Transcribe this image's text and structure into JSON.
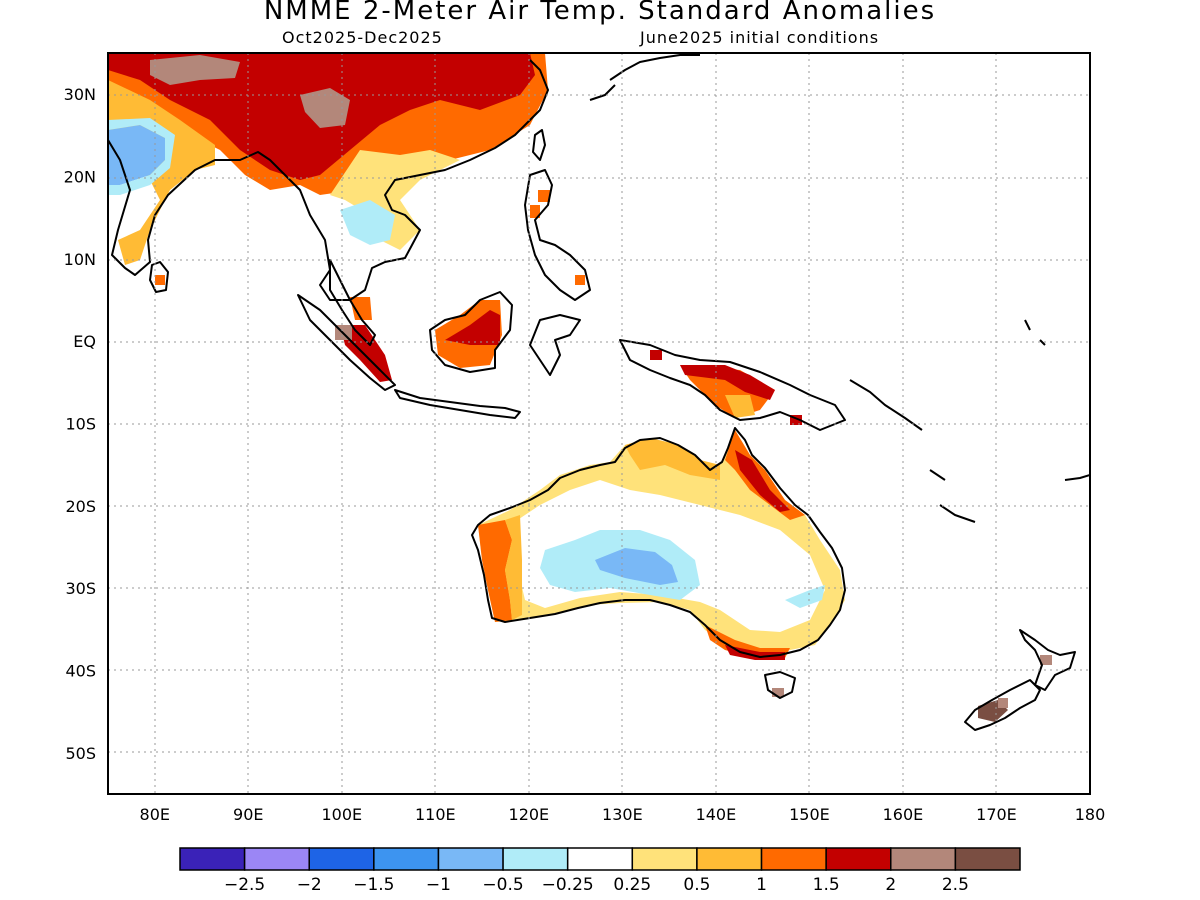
{
  "header": {
    "title": "NMME 2-Meter Air Temp. Standard Anomalies",
    "period": "Oct2025-Dec2025",
    "initial_conditions": "June2025 initial conditions"
  },
  "map": {
    "lon_range": [
      75,
      180
    ],
    "lat_range": [
      -55,
      35
    ],
    "lon_ticks": [
      {
        "lon": 80,
        "label": "80E"
      },
      {
        "lon": 90,
        "label": "90E"
      },
      {
        "lon": 100,
        "label": "100E"
      },
      {
        "lon": 110,
        "label": "110E"
      },
      {
        "lon": 120,
        "label": "120E"
      },
      {
        "lon": 130,
        "label": "130E"
      },
      {
        "lon": 140,
        "label": "140E"
      },
      {
        "lon": 150,
        "label": "150E"
      },
      {
        "lon": 160,
        "label": "160E"
      },
      {
        "lon": 170,
        "label": "170E"
      },
      {
        "lon": 180,
        "label": "180"
      }
    ],
    "lat_ticks": [
      {
        "lat": 30,
        "label": "30N"
      },
      {
        "lat": 20,
        "label": "20N"
      },
      {
        "lat": 10,
        "label": "10N"
      },
      {
        "lat": 0,
        "label": "EQ"
      },
      {
        "lat": -10,
        "label": "10S"
      },
      {
        "lat": -20,
        "label": "20S"
      },
      {
        "lat": -30,
        "label": "30S"
      },
      {
        "lat": -40,
        "label": "40S"
      },
      {
        "lat": -50,
        "label": "50S"
      }
    ],
    "gridlines": "dotted"
  },
  "legend": {
    "colors": [
      "#3a22b8",
      "#9b86f5",
      "#1e64e6",
      "#3d94f0",
      "#79b8f6",
      "#b0ecf8",
      "#ffffff",
      "#ffe27a",
      "#ffbb35",
      "#ff6a00",
      "#c30000",
      "#b3877a",
      "#7a4e42"
    ],
    "labels": [
      "-2.5",
      "-2",
      "-1.5",
      "-1",
      "-0.5",
      "-0.25",
      "0.25",
      "0.5",
      "1",
      "1.5",
      "2",
      "2.5"
    ]
  },
  "anomaly_regions": [
    {
      "region": "southern-china",
      "level": "2"
    },
    {
      "region": "tibetan-plateau",
      "level": "2.5"
    },
    {
      "region": "central-india",
      "level": "-1"
    },
    {
      "region": "thailand",
      "level": "-0.25"
    },
    {
      "region": "borneo",
      "level": "2"
    },
    {
      "region": "sumatra",
      "level": "2"
    },
    {
      "region": "new-guinea",
      "level": "2"
    },
    {
      "region": "central-australia",
      "level": "-0.5"
    },
    {
      "region": "northern-australia-coast",
      "level": "0.5"
    },
    {
      "region": "eastern-australia-coast",
      "level": "1"
    },
    {
      "region": "western-australia-coast",
      "level": "1.5"
    },
    {
      "region": "southern-australia-coast",
      "level": "1.5"
    },
    {
      "region": "new-zealand-alps",
      "level": "2.5"
    }
  ]
}
